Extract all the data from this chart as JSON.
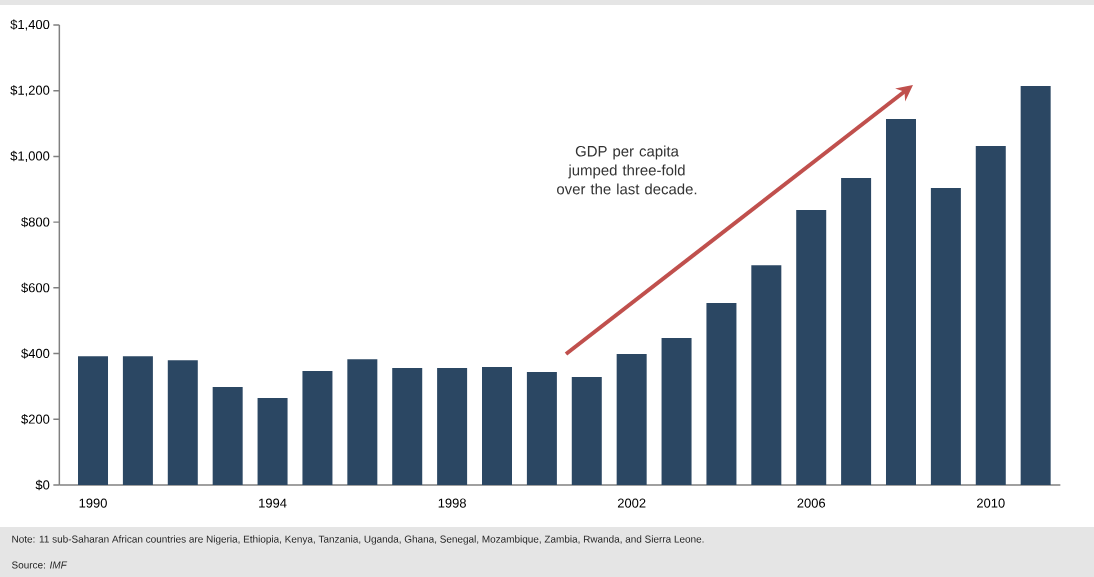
{
  "chart_data": {
    "type": "bar",
    "categories": [
      "1990",
      null,
      null,
      null,
      "1994",
      null,
      null,
      null,
      "1998",
      null,
      null,
      null,
      "2002",
      null,
      null,
      null,
      "2006",
      null,
      null,
      null,
      "2010",
      null
    ],
    "values": [
      392,
      392,
      380,
      298,
      265,
      347,
      383,
      356,
      356,
      359,
      344,
      329,
      399,
      447,
      554,
      669,
      837,
      934,
      1114,
      904,
      1032,
      1214
    ],
    "color": "#2b4763",
    "ylim": [
      0,
      1400
    ],
    "yticks": [
      {
        "value": 0,
        "label": "$0"
      },
      {
        "value": 200,
        "label": "$200"
      },
      {
        "value": 400,
        "label": "$400"
      },
      {
        "value": 600,
        "label": "$600"
      },
      {
        "value": 800,
        "label": "$800"
      },
      {
        "value": 1000,
        "label": "$1,000"
      },
      {
        "value": 1200,
        "label": "$1,200"
      },
      {
        "value": 1400,
        "label": "$1,400"
      }
    ],
    "annotations": [
      "GDP per capita jumped three-fold over the last decade.",
      "Note: 11 sub-Saharan African countries are Nigeria, Ethiopia, Kenya, Tanzania, Uganda, Ghana, Senegal, Mozambique, Zambia, Rwanda, and Sierra Leone.",
      "Source: *IMF*"
    ]
  }
}
